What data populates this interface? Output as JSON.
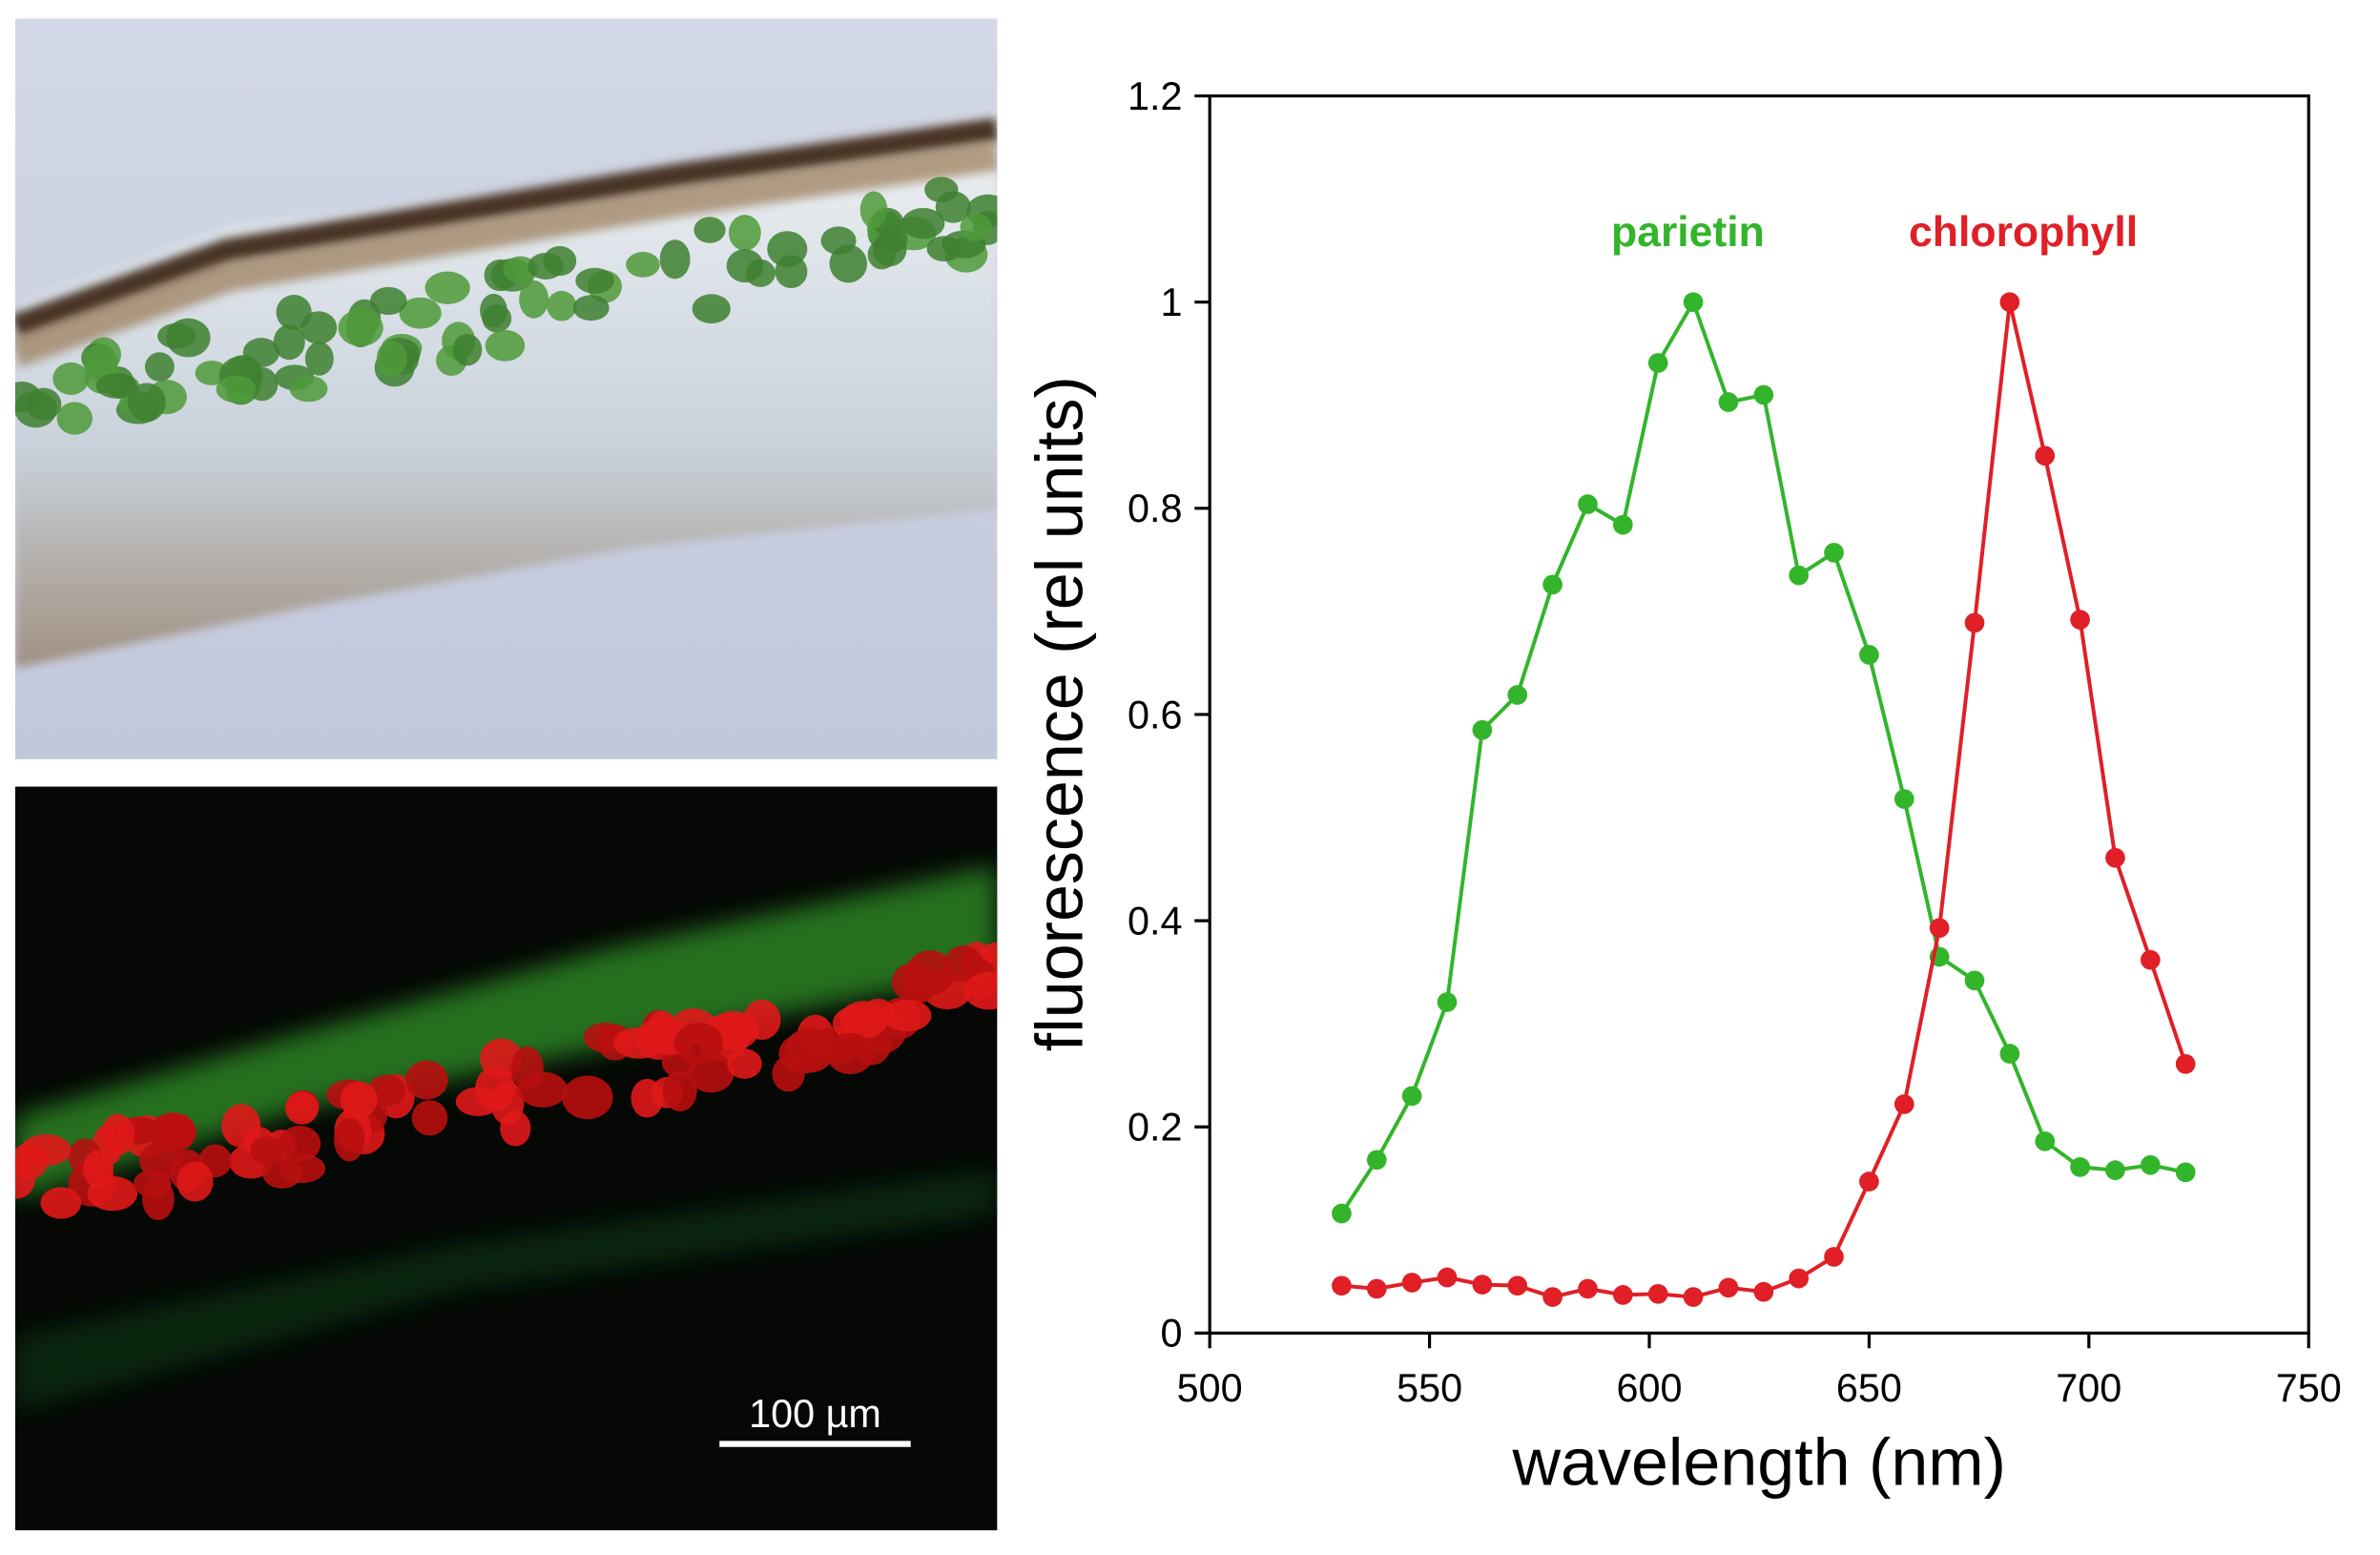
{
  "chart_data": {
    "type": "line",
    "xlabel": "wavelength (nm)",
    "ylabel": "fluorescence (rel units)",
    "x": [
      530,
      538,
      546,
      554,
      562,
      570,
      578,
      586,
      594,
      602,
      610,
      618,
      626,
      634,
      642,
      650,
      658,
      666,
      674,
      682,
      690,
      698,
      706,
      714,
      722
    ],
    "series": [
      {
        "name": "parietin",
        "color": "#33b52b",
        "values": [
          0.116,
          0.168,
          0.23,
          0.321,
          0.585,
          0.619,
          0.726,
          0.804,
          0.784,
          0.941,
          1.0,
          0.903,
          0.91,
          0.735,
          0.757,
          0.658,
          0.518,
          0.365,
          0.342,
          0.271,
          0.186,
          0.161,
          0.158,
          0.163,
          0.156
        ]
      },
      {
        "name": "chlorophyll",
        "color": "#e01f26",
        "values": [
          0.046,
          0.043,
          0.049,
          0.054,
          0.047,
          0.046,
          0.035,
          0.043,
          0.037,
          0.038,
          0.035,
          0.044,
          0.04,
          0.053,
          0.074,
          0.147,
          0.222,
          0.393,
          0.689,
          1.0,
          0.851,
          0.692,
          0.461,
          0.362,
          0.261
        ]
      }
    ],
    "xlim": [
      500,
      750
    ],
    "xticks": [
      500,
      550,
      600,
      650,
      700,
      750
    ],
    "ylim": [
      0,
      1.2
    ],
    "yticks": [
      0,
      0.2,
      0.4,
      0.6,
      0.8,
      1,
      1.2
    ],
    "scale_bar": "100 µm"
  }
}
